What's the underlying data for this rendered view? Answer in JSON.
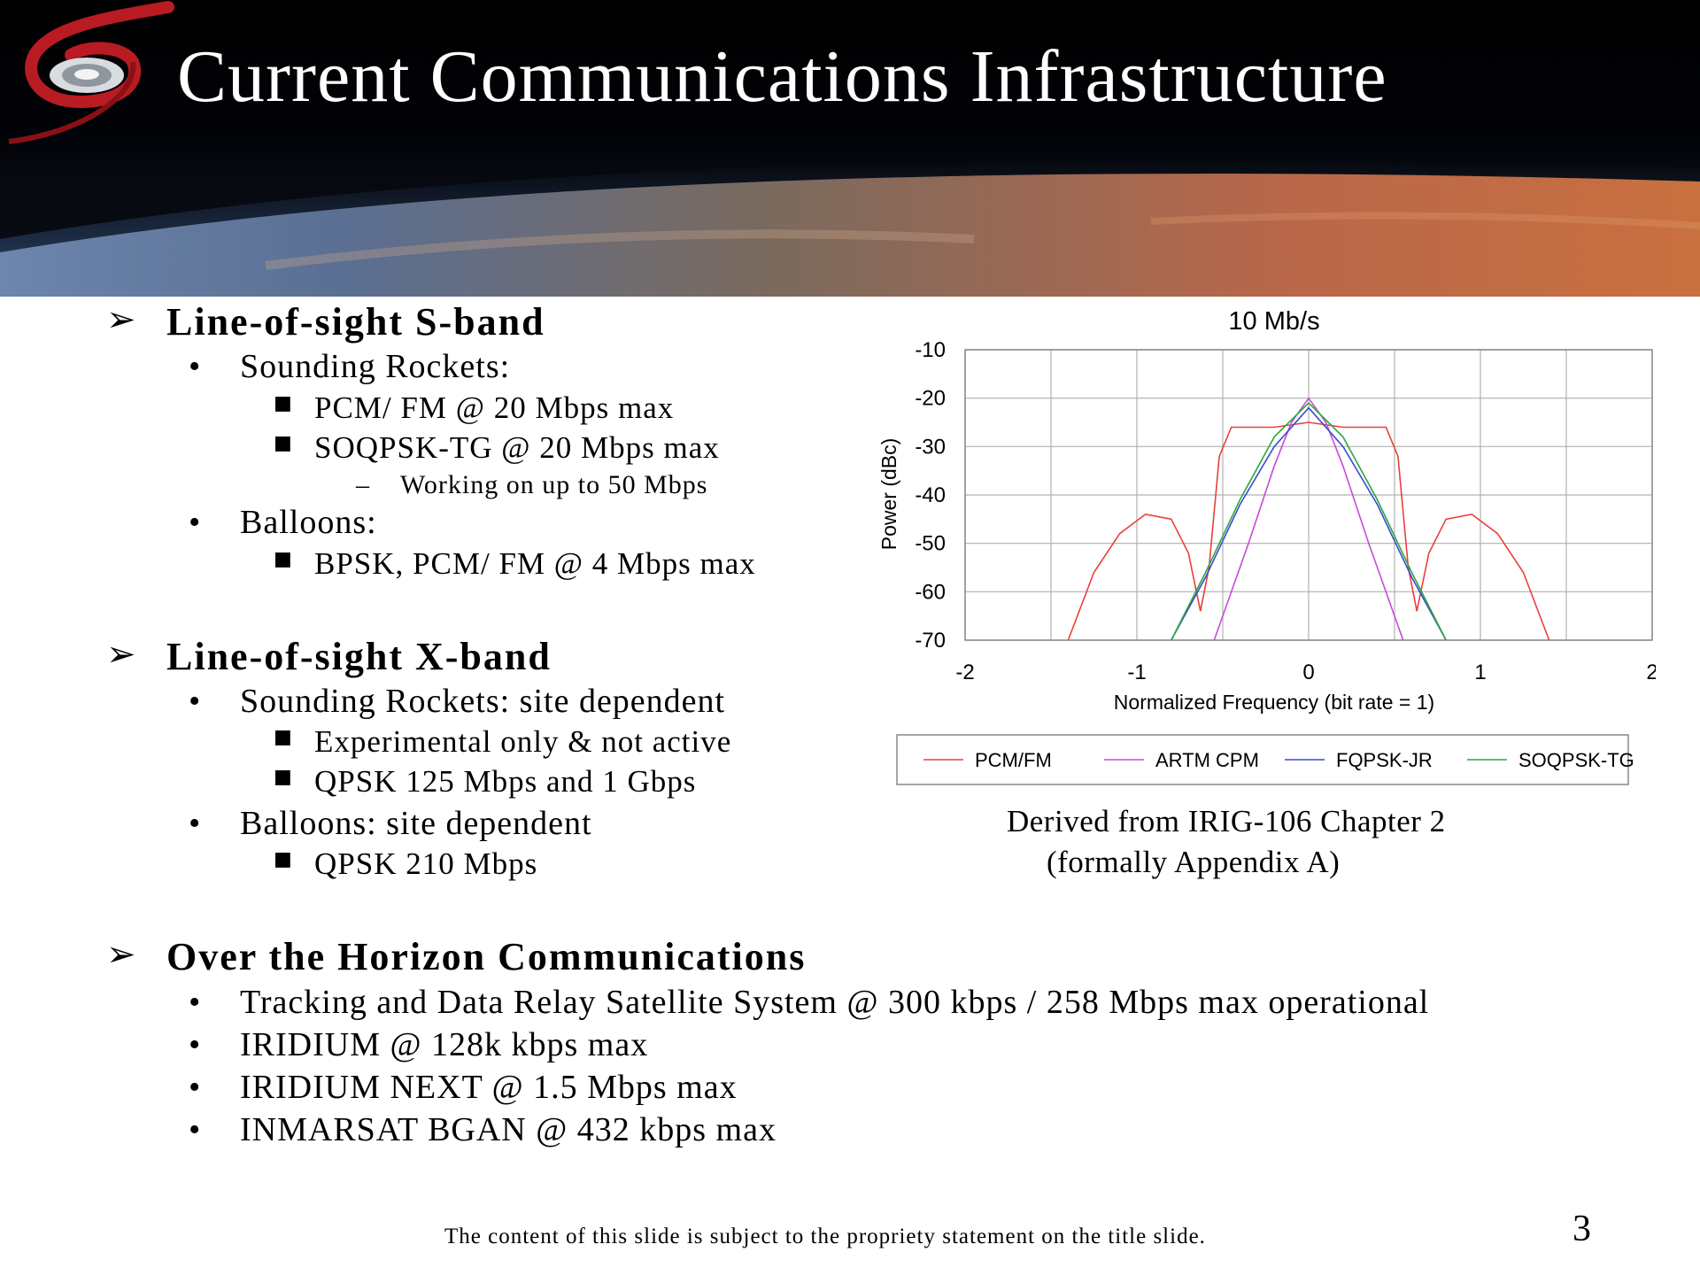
{
  "slide": {
    "title": "Current Communications Infrastructure",
    "page_number": "3",
    "footer": "The content of this slide is subject to the propriety statement on the title slide."
  },
  "bullets": {
    "s1": {
      "heading": "Line-of-sight S-band",
      "sounding": "Sounding Rockets:",
      "pcm": "PCM/ FM @ 20 Mbps max",
      "soqpsk": "SOQPSK-TG @ 20 Mbps max",
      "working": "Working on up to 50 Mbps",
      "balloons": "Balloons:",
      "bpsk": "BPSK, PCM/ FM @ 4 Mbps max"
    },
    "s2": {
      "heading": "Line-of-sight X-band",
      "sounding": "Sounding Rockets: site dependent",
      "experimental": "Experimental only & not active",
      "qpsk125": "QPSK 125 Mbps and 1 Gbps",
      "balloons": "Balloons:  site dependent",
      "qpsk210": "QPSK 210 Mbps"
    },
    "s3": {
      "heading": "Over the Horizon Communications",
      "tdrss": "Tracking and Data Relay Satellite System @ 300 kbps / 258 Mbps max operational",
      "iridium": "IRIDIUM @ 128k kbps max",
      "iridium_next": "IRIDIUM NEXT @ 1.5 Mbps max",
      "inmarsat": "INMARSAT BGAN @ 432 kbps max"
    }
  },
  "caption": {
    "line1": "Derived from IRIG-106 Chapter 2",
    "line2": "(formally Appendix A)"
  },
  "colors": {
    "pcm_fm": "#e8403a",
    "artm_cpm": "#c84ad8",
    "fqpsk_jr": "#3a4ad0",
    "soqpsk_tg": "#2aa83a",
    "logo_red": "#b81c22"
  },
  "icons": [
    "logo-emblem",
    "arrow-bullet-icon",
    "round-bullet-icon",
    "square-bullet-icon",
    "dash-bullet-icon"
  ],
  "chart_data": {
    "type": "line",
    "title": "10 Mb/s",
    "xlabel": "Normalized Frequency (bit rate = 1)",
    "ylabel": "Power (dBc)",
    "xlim": [
      -2,
      2
    ],
    "ylim": [
      -70,
      -10
    ],
    "xticks": [
      "-2",
      "-1",
      "0",
      "1",
      "2"
    ],
    "yticks": [
      "-10",
      "-20",
      "-30",
      "-40",
      "-50",
      "-60",
      "-70"
    ],
    "grid": true,
    "legend_position": "bottom",
    "series": [
      {
        "name": "PCM/FM",
        "points": [
          [
            -1.4,
            -70
          ],
          [
            -1.25,
            -56
          ],
          [
            -1.1,
            -48
          ],
          [
            -0.95,
            -44
          ],
          [
            -0.8,
            -45
          ],
          [
            -0.7,
            -52
          ],
          [
            -0.63,
            -64
          ],
          [
            -0.58,
            -55
          ],
          [
            -0.52,
            -32
          ],
          [
            -0.45,
            -26
          ],
          [
            -0.2,
            -26
          ],
          [
            0,
            -25
          ],
          [
            0.2,
            -26
          ],
          [
            0.45,
            -26
          ],
          [
            0.52,
            -32
          ],
          [
            0.58,
            -55
          ],
          [
            0.63,
            -64
          ],
          [
            0.7,
            -52
          ],
          [
            0.8,
            -45
          ],
          [
            0.95,
            -44
          ],
          [
            1.1,
            -48
          ],
          [
            1.25,
            -56
          ],
          [
            1.4,
            -70
          ]
        ]
      },
      {
        "name": "ARTM CPM",
        "points": [
          [
            -0.55,
            -70
          ],
          [
            -0.35,
            -50
          ],
          [
            -0.2,
            -34
          ],
          [
            -0.1,
            -25
          ],
          [
            0,
            -20
          ],
          [
            0.1,
            -25
          ],
          [
            0.2,
            -34
          ],
          [
            0.35,
            -50
          ],
          [
            0.55,
            -70
          ]
        ]
      },
      {
        "name": "FQPSK-JR",
        "points": [
          [
            -0.8,
            -70
          ],
          [
            -0.6,
            -57
          ],
          [
            -0.4,
            -42
          ],
          [
            -0.2,
            -30
          ],
          [
            0,
            -22
          ],
          [
            0.2,
            -30
          ],
          [
            0.4,
            -42
          ],
          [
            0.6,
            -57
          ],
          [
            0.8,
            -70
          ]
        ]
      },
      {
        "name": "SOQPSK-TG",
        "points": [
          [
            -0.8,
            -70
          ],
          [
            -0.6,
            -56
          ],
          [
            -0.4,
            -41
          ],
          [
            -0.2,
            -28
          ],
          [
            0,
            -21
          ],
          [
            0.2,
            -28
          ],
          [
            0.4,
            -41
          ],
          [
            0.6,
            -56
          ],
          [
            0.8,
            -70
          ]
        ]
      }
    ]
  }
}
